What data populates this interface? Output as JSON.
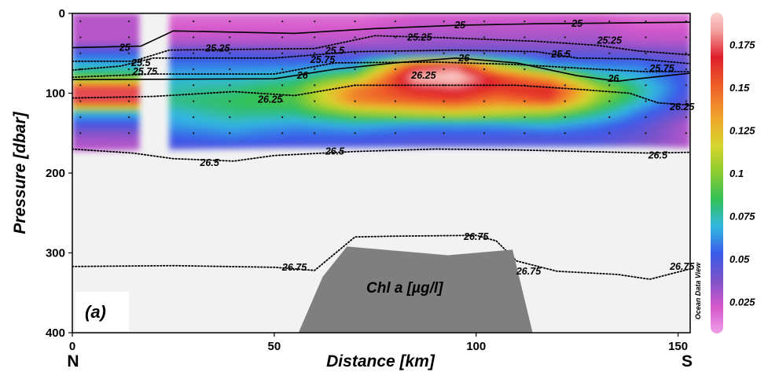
{
  "chart_data": {
    "type": "heatmap",
    "title": "",
    "panel_label": "(a)",
    "variable_label": "Chl a [µg/l]",
    "software_credit": "Ocean Data View",
    "xlabel": "Distance [km]",
    "ylabel": "Pressure [dbar]",
    "x_left_label": "N",
    "x_right_label": "S",
    "xlim": [
      0,
      153
    ],
    "ylim": [
      400,
      0
    ],
    "x_ticks": [
      {
        "v": 0,
        "label": "0"
      },
      {
        "v": 50,
        "label": "50"
      },
      {
        "v": 100,
        "label": "100"
      },
      {
        "v": 150,
        "label": "150"
      }
    ],
    "y_ticks": [
      {
        "v": 0,
        "label": "0"
      },
      {
        "v": 100,
        "label": "100"
      },
      {
        "v": 200,
        "label": "200"
      },
      {
        "v": 300,
        "label": "300"
      },
      {
        "v": 400,
        "label": "400"
      }
    ],
    "colorbar": {
      "min": 0.01,
      "max": 0.19,
      "ticks": [
        {
          "v": 0.175,
          "label": "0.175"
        },
        {
          "v": 0.15,
          "label": "0.15"
        },
        {
          "v": 0.125,
          "label": "0.125"
        },
        {
          "v": 0.1,
          "label": "0.1"
        },
        {
          "v": 0.075,
          "label": "0.075"
        },
        {
          "v": 0.05,
          "label": "0.05"
        },
        {
          "v": 0.025,
          "label": "0.025"
        }
      ],
      "stops": [
        {
          "v": 0.01,
          "color": "#efa0e9"
        },
        {
          "v": 0.025,
          "color": "#d557cb"
        },
        {
          "v": 0.04,
          "color": "#7d52c9"
        },
        {
          "v": 0.055,
          "color": "#3a5be9"
        },
        {
          "v": 0.07,
          "color": "#32b8e2"
        },
        {
          "v": 0.085,
          "color": "#31c05a"
        },
        {
          "v": 0.1,
          "color": "#8acb30"
        },
        {
          "v": 0.115,
          "color": "#d4d62e"
        },
        {
          "v": 0.13,
          "color": "#f0a82c"
        },
        {
          "v": 0.15,
          "color": "#ee5b2a"
        },
        {
          "v": 0.165,
          "color": "#de1f2a"
        },
        {
          "v": 0.18,
          "color": "#f4a4a2"
        },
        {
          "v": 0.19,
          "color": "#fbd2cf"
        }
      ]
    },
    "depth_levels": [
      5,
      20,
      35,
      50,
      65,
      80,
      95,
      110,
      125,
      140,
      155,
      168
    ],
    "chl_profiles": [
      {
        "x": 0,
        "values": [
          0.03,
          0.03,
          0.03,
          0.055,
          0.07,
          0.09,
          0.17,
          0.17,
          0.07,
          0.05,
          0.035,
          0.03
        ]
      },
      {
        "x": 16,
        "values": [
          0.03,
          0.03,
          0.03,
          0.055,
          0.07,
          0.09,
          0.17,
          0.17,
          0.07,
          0.05,
          0.035,
          0.03
        ]
      },
      {
        "x": 24,
        "values": [
          0.02,
          0.025,
          0.03,
          0.05,
          0.06,
          0.07,
          0.075,
          0.08,
          0.07,
          0.065,
          0.055,
          0.05
        ]
      },
      {
        "x": 40,
        "values": [
          0.02,
          0.025,
          0.03,
          0.05,
          0.06,
          0.07,
          0.08,
          0.085,
          0.08,
          0.07,
          0.06,
          0.05
        ]
      },
      {
        "x": 55,
        "values": [
          0.02,
          0.025,
          0.03,
          0.045,
          0.06,
          0.075,
          0.09,
          0.09,
          0.08,
          0.065,
          0.055,
          0.05
        ]
      },
      {
        "x": 70,
        "values": [
          0.02,
          0.025,
          0.03,
          0.045,
          0.065,
          0.1,
          0.14,
          0.14,
          0.1,
          0.07,
          0.055,
          0.05
        ]
      },
      {
        "x": 85,
        "values": [
          0.025,
          0.03,
          0.035,
          0.04,
          0.16,
          0.185,
          0.165,
          0.15,
          0.11,
          0.065,
          0.05,
          0.05
        ]
      },
      {
        "x": 95,
        "values": [
          0.025,
          0.03,
          0.035,
          0.045,
          0.17,
          0.19,
          0.17,
          0.155,
          0.115,
          0.065,
          0.05,
          0.05
        ]
      },
      {
        "x": 105,
        "values": [
          0.025,
          0.03,
          0.035,
          0.045,
          0.11,
          0.16,
          0.16,
          0.14,
          0.11,
          0.065,
          0.05,
          0.05
        ]
      },
      {
        "x": 118,
        "values": [
          0.025,
          0.03,
          0.035,
          0.045,
          0.065,
          0.13,
          0.165,
          0.155,
          0.1,
          0.07,
          0.05,
          0.05
        ]
      },
      {
        "x": 130,
        "values": [
          0.025,
          0.03,
          0.035,
          0.045,
          0.06,
          0.08,
          0.11,
          0.1,
          0.08,
          0.06,
          0.05,
          0.05
        ]
      },
      {
        "x": 140,
        "values": [
          0.02,
          0.025,
          0.03,
          0.045,
          0.06,
          0.07,
          0.08,
          0.075,
          0.06,
          0.05,
          0.045,
          0.04
        ]
      },
      {
        "x": 153,
        "values": [
          0.02,
          0.025,
          0.03,
          0.04,
          0.045,
          0.05,
          0.05,
          0.045,
          0.04,
          0.03,
          0.03,
          0.03
        ]
      }
    ],
    "data_gaps": [
      {
        "x_from": 17,
        "x_to": 24
      }
    ],
    "bottom_depth": [
      {
        "x": 0,
        "y": 172
      },
      {
        "x": 25,
        "y": 170
      },
      {
        "x": 50,
        "y": 168
      },
      {
        "x": 90,
        "y": 167
      },
      {
        "x": 140,
        "y": 166
      },
      {
        "x": 153,
        "y": 168
      }
    ],
    "stations_x": [
      2,
      14,
      30,
      39,
      52,
      60,
      70,
      80,
      92,
      102,
      112,
      122,
      133,
      142,
      152
    ],
    "station_depths": [
      10,
      30,
      50,
      70,
      90,
      110,
      130,
      150
    ],
    "isopycnals": [
      {
        "label": "25",
        "style": "solid",
        "points": [
          [
            0,
            43
          ],
          [
            17,
            41
          ],
          [
            25,
            22
          ],
          [
            55,
            25
          ],
          [
            75,
            19
          ],
          [
            95,
            15
          ],
          [
            115,
            13
          ],
          [
            135,
            12
          ],
          [
            153,
            11
          ]
        ],
        "labels_at": [
          [
            13,
            43
          ],
          [
            96,
            15
          ],
          [
            125,
            13
          ]
        ]
      },
      {
        "label": "25.25",
        "style": "dotted",
        "points": [
          [
            0,
            60
          ],
          [
            15,
            60
          ],
          [
            24,
            46
          ],
          [
            60,
            44
          ],
          [
            75,
            28
          ],
          [
            95,
            31
          ],
          [
            115,
            35
          ],
          [
            130,
            40
          ],
          [
            140,
            47
          ],
          [
            153,
            52
          ]
        ],
        "labels_at": [
          [
            36,
            44
          ],
          [
            86,
            30
          ],
          [
            133,
            34
          ]
        ]
      },
      {
        "label": "25.5",
        "style": "dotted",
        "points": [
          [
            0,
            71
          ],
          [
            12,
            66
          ],
          [
            20,
            56
          ],
          [
            50,
            56
          ],
          [
            70,
            48
          ],
          [
            95,
            46
          ],
          [
            115,
            48
          ],
          [
            125,
            56
          ],
          [
            140,
            57
          ],
          [
            153,
            63
          ]
        ],
        "labels_at": [
          [
            17,
            62
          ],
          [
            65,
            47
          ],
          [
            121,
            51
          ]
        ]
      },
      {
        "label": "25.75",
        "style": "dotted",
        "points": [
          [
            0,
            80
          ],
          [
            20,
            76
          ],
          [
            50,
            76
          ],
          [
            65,
            62
          ],
          [
            90,
            61
          ],
          [
            110,
            64
          ],
          [
            130,
            70
          ],
          [
            142,
            73
          ],
          [
            153,
            73
          ]
        ],
        "labels_at": [
          [
            18,
            73
          ],
          [
            62,
            58
          ],
          [
            146,
            69
          ]
        ]
      },
      {
        "label": "26",
        "style": "solid",
        "points": [
          [
            0,
            83
          ],
          [
            50,
            82
          ],
          [
            65,
            70
          ],
          [
            80,
            62
          ],
          [
            95,
            56
          ],
          [
            110,
            62
          ],
          [
            125,
            78
          ],
          [
            135,
            85
          ],
          [
            140,
            82
          ],
          [
            153,
            75
          ]
        ],
        "labels_at": [
          [
            57,
            78
          ],
          [
            97,
            56
          ],
          [
            134,
            82
          ]
        ]
      },
      {
        "label": "26.25",
        "style": "dotted",
        "points": [
          [
            0,
            106
          ],
          [
            20,
            104
          ],
          [
            40,
            98
          ],
          [
            55,
            103
          ],
          [
            70,
            90
          ],
          [
            90,
            90
          ],
          [
            110,
            90
          ],
          [
            125,
            95
          ],
          [
            138,
            100
          ],
          [
            145,
            112
          ],
          [
            153,
            115
          ]
        ],
        "labels_at": [
          [
            49,
            108
          ],
          [
            87,
            78
          ],
          [
            151,
            117
          ]
        ]
      },
      {
        "label": "26.5",
        "style": "dotted",
        "points": [
          [
            0,
            170
          ],
          [
            15,
            175
          ],
          [
            25,
            182
          ],
          [
            40,
            185
          ],
          [
            50,
            178
          ],
          [
            70,
            173
          ],
          [
            90,
            170
          ],
          [
            110,
            171
          ],
          [
            135,
            174
          ],
          [
            143,
            175
          ],
          [
            153,
            174
          ]
        ],
        "labels_at": [
          [
            34,
            187
          ],
          [
            65,
            173
          ],
          [
            145,
            178
          ]
        ]
      },
      {
        "label": "26.75",
        "style": "dotted",
        "points": [
          [
            0,
            317
          ],
          [
            25,
            316
          ],
          [
            50,
            318
          ],
          [
            60,
            322
          ],
          [
            70,
            280
          ],
          [
            80,
            279
          ],
          [
            100,
            278
          ],
          [
            105,
            285
          ],
          [
            110,
            310
          ],
          [
            120,
            323
          ],
          [
            135,
            327
          ],
          [
            143,
            333
          ],
          [
            153,
            320
          ]
        ],
        "labels_at": [
          [
            55,
            318
          ],
          [
            100,
            280
          ],
          [
            113,
            323
          ],
          [
            151,
            317
          ]
        ]
      }
    ],
    "seamount": [
      [
        56,
        400
      ],
      [
        62,
        330
      ],
      [
        68,
        292
      ],
      [
        93,
        303
      ],
      [
        109,
        296
      ],
      [
        114,
        400
      ]
    ]
  }
}
